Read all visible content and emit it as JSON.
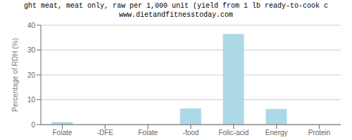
{
  "chart_data": {
    "type": "bar",
    "title": "ght meat, meat only, raw per 1,000 unit (yield from 1 lb ready-to-cook c",
    "subtitle": "www.dietandfitnesstoday.com",
    "categories": [
      "Folate",
      "-DFE",
      "Folate",
      "-food",
      "Folic-acid",
      "Energy",
      "Protein"
    ],
    "values": [
      1.0,
      0.0,
      0.0,
      6.5,
      36.5,
      6.3,
      0.0
    ],
    "color": "#add8e6",
    "y_label": "Percentage of RDH (%)",
    "ylim": [
      0,
      40
    ],
    "yticks": [
      0,
      10,
      20,
      30,
      40
    ],
    "grid": true
  }
}
